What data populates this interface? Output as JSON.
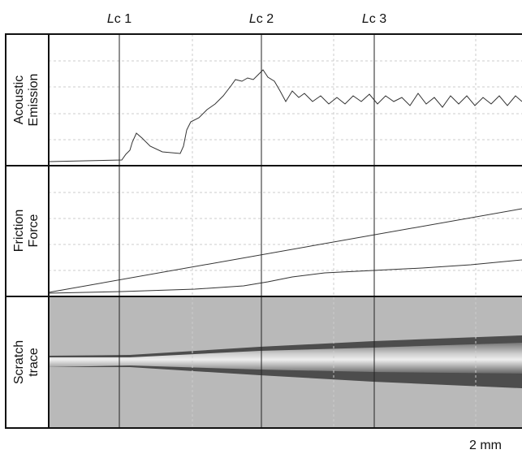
{
  "critical_loads": [
    {
      "italic": "L",
      "rest": "c 1"
    },
    {
      "italic": "L",
      "rest": "c 2"
    },
    {
      "italic": "L",
      "rest": "c 3"
    }
  ],
  "panels": [
    [
      "Acoustic",
      "Emission"
    ],
    [
      "Friction",
      "Force"
    ],
    [
      "Scratch",
      "trace"
    ]
  ],
  "scale_bar": "2 mm"
}
